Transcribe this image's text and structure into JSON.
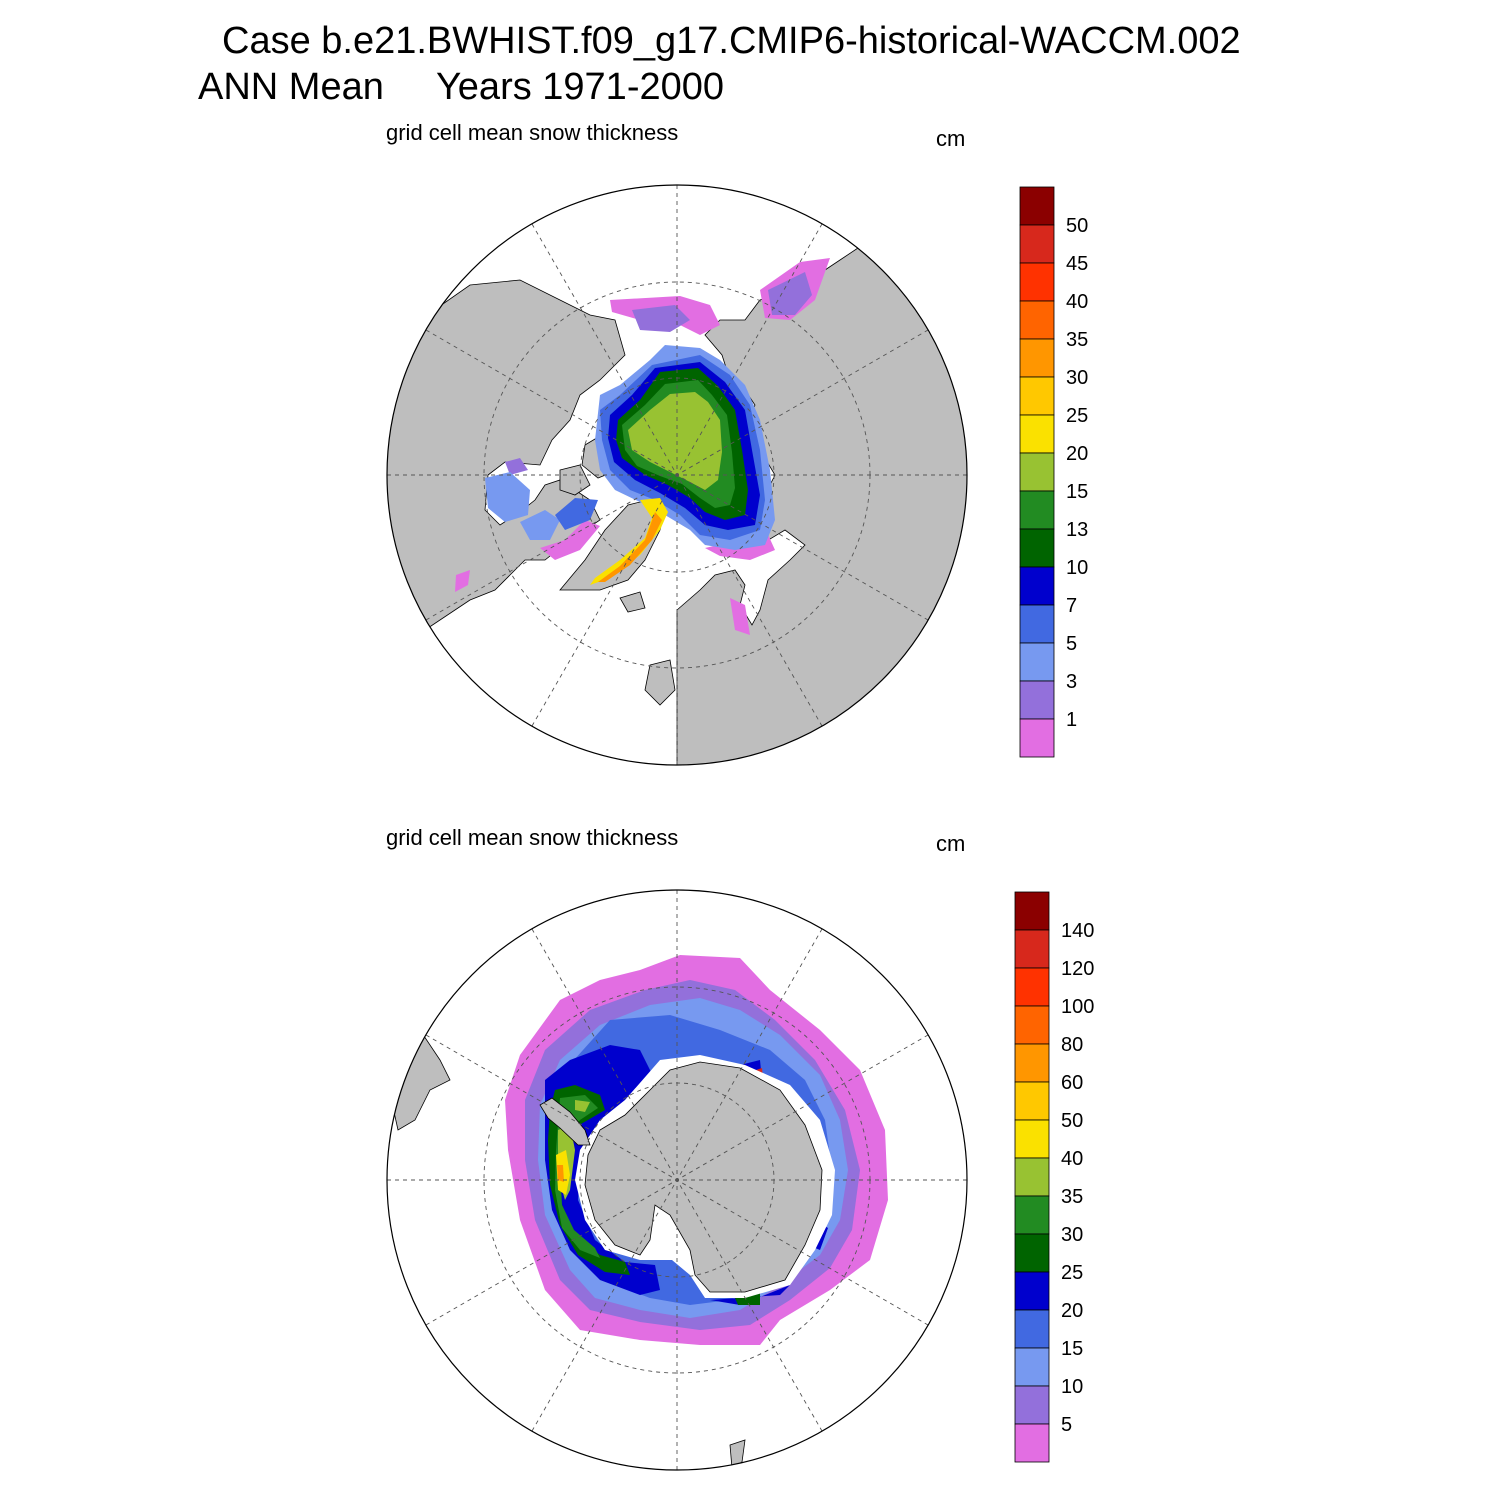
{
  "title": {
    "line1": "Case b.e21.BWHIST.f09_g17.CMIP6-historical-WACCM.002",
    "line2": "ANN Mean     Years 1971-2000"
  },
  "panels": [
    {
      "id": "north",
      "label": "grid cell mean snow thickness",
      "units": "cm",
      "hemisphere": "Northern",
      "colorbar": {
        "ticks": [
          "50",
          "45",
          "40",
          "35",
          "30",
          "25",
          "20",
          "15",
          "13",
          "10",
          "7",
          "5",
          "3",
          "1"
        ],
        "colors": [
          "#8b0000",
          "#d7281c",
          "#ff3200",
          "#ff6400",
          "#ff9600",
          "#ffc800",
          "#fae100",
          "#98c232",
          "#228b22",
          "#006400",
          "#0000cd",
          "#4169e1",
          "#7799f0",
          "#9370db",
          "#e26ee2"
        ]
      }
    },
    {
      "id": "south",
      "label": "grid cell mean snow thickness",
      "units": "cm",
      "hemisphere": "Southern",
      "colorbar": {
        "ticks": [
          "140",
          "120",
          "100",
          "80",
          "60",
          "50",
          "40",
          "35",
          "30",
          "25",
          "20",
          "15",
          "10",
          "5"
        ],
        "colors": [
          "#8b0000",
          "#d7281c",
          "#ff3200",
          "#ff6400",
          "#ff9600",
          "#ffc800",
          "#fae100",
          "#98c232",
          "#228b22",
          "#006400",
          "#0000cd",
          "#4169e1",
          "#7799f0",
          "#9370db",
          "#e26ee2"
        ]
      }
    }
  ],
  "map_colors": {
    "land": "#bebebe",
    "ocean": "#ffffff",
    "grid": "#555555"
  }
}
